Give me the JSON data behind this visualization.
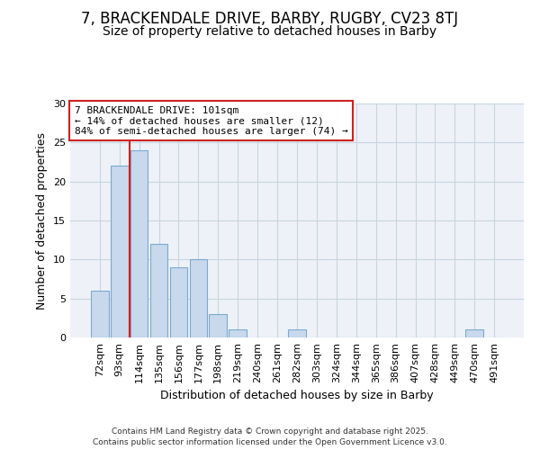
{
  "title": "7, BRACKENDALE DRIVE, BARBY, RUGBY, CV23 8TJ",
  "subtitle": "Size of property relative to detached houses in Barby",
  "xlabel": "Distribution of detached houses by size in Barby",
  "ylabel": "Number of detached properties",
  "categories": [
    "72sqm",
    "93sqm",
    "114sqm",
    "135sqm",
    "156sqm",
    "177sqm",
    "198sqm",
    "219sqm",
    "240sqm",
    "261sqm",
    "282sqm",
    "303sqm",
    "324sqm",
    "344sqm",
    "365sqm",
    "386sqm",
    "407sqm",
    "428sqm",
    "449sqm",
    "470sqm",
    "491sqm"
  ],
  "values": [
    6,
    22,
    24,
    12,
    9,
    10,
    3,
    1,
    0,
    0,
    1,
    0,
    0,
    0,
    0,
    0,
    0,
    0,
    0,
    1,
    0
  ],
  "bar_color": "#c8d8ed",
  "bar_edge_color": "#7aaad0",
  "grid_color": "#c8d4e0",
  "background_color": "#ffffff",
  "plot_bg_color": "#eef2f8",
  "vline_x": 1.5,
  "vline_color": "#cc2222",
  "annotation_text": "7 BRACKENDALE DRIVE: 101sqm\n← 14% of detached houses are smaller (12)\n84% of semi-detached houses are larger (74) →",
  "annotation_box_facecolor": "#ffffff",
  "annotation_box_edge": "#cc2222",
  "ylim": [
    0,
    30
  ],
  "yticks": [
    0,
    5,
    10,
    15,
    20,
    25,
    30
  ],
  "title_fontsize": 12,
  "subtitle_fontsize": 10,
  "axis_label_fontsize": 9,
  "tick_fontsize": 8,
  "annotation_fontsize": 8,
  "footer_line1": "Contains HM Land Registry data © Crown copyright and database right 2025.",
  "footer_line2": "Contains public sector information licensed under the Open Government Licence v3.0."
}
